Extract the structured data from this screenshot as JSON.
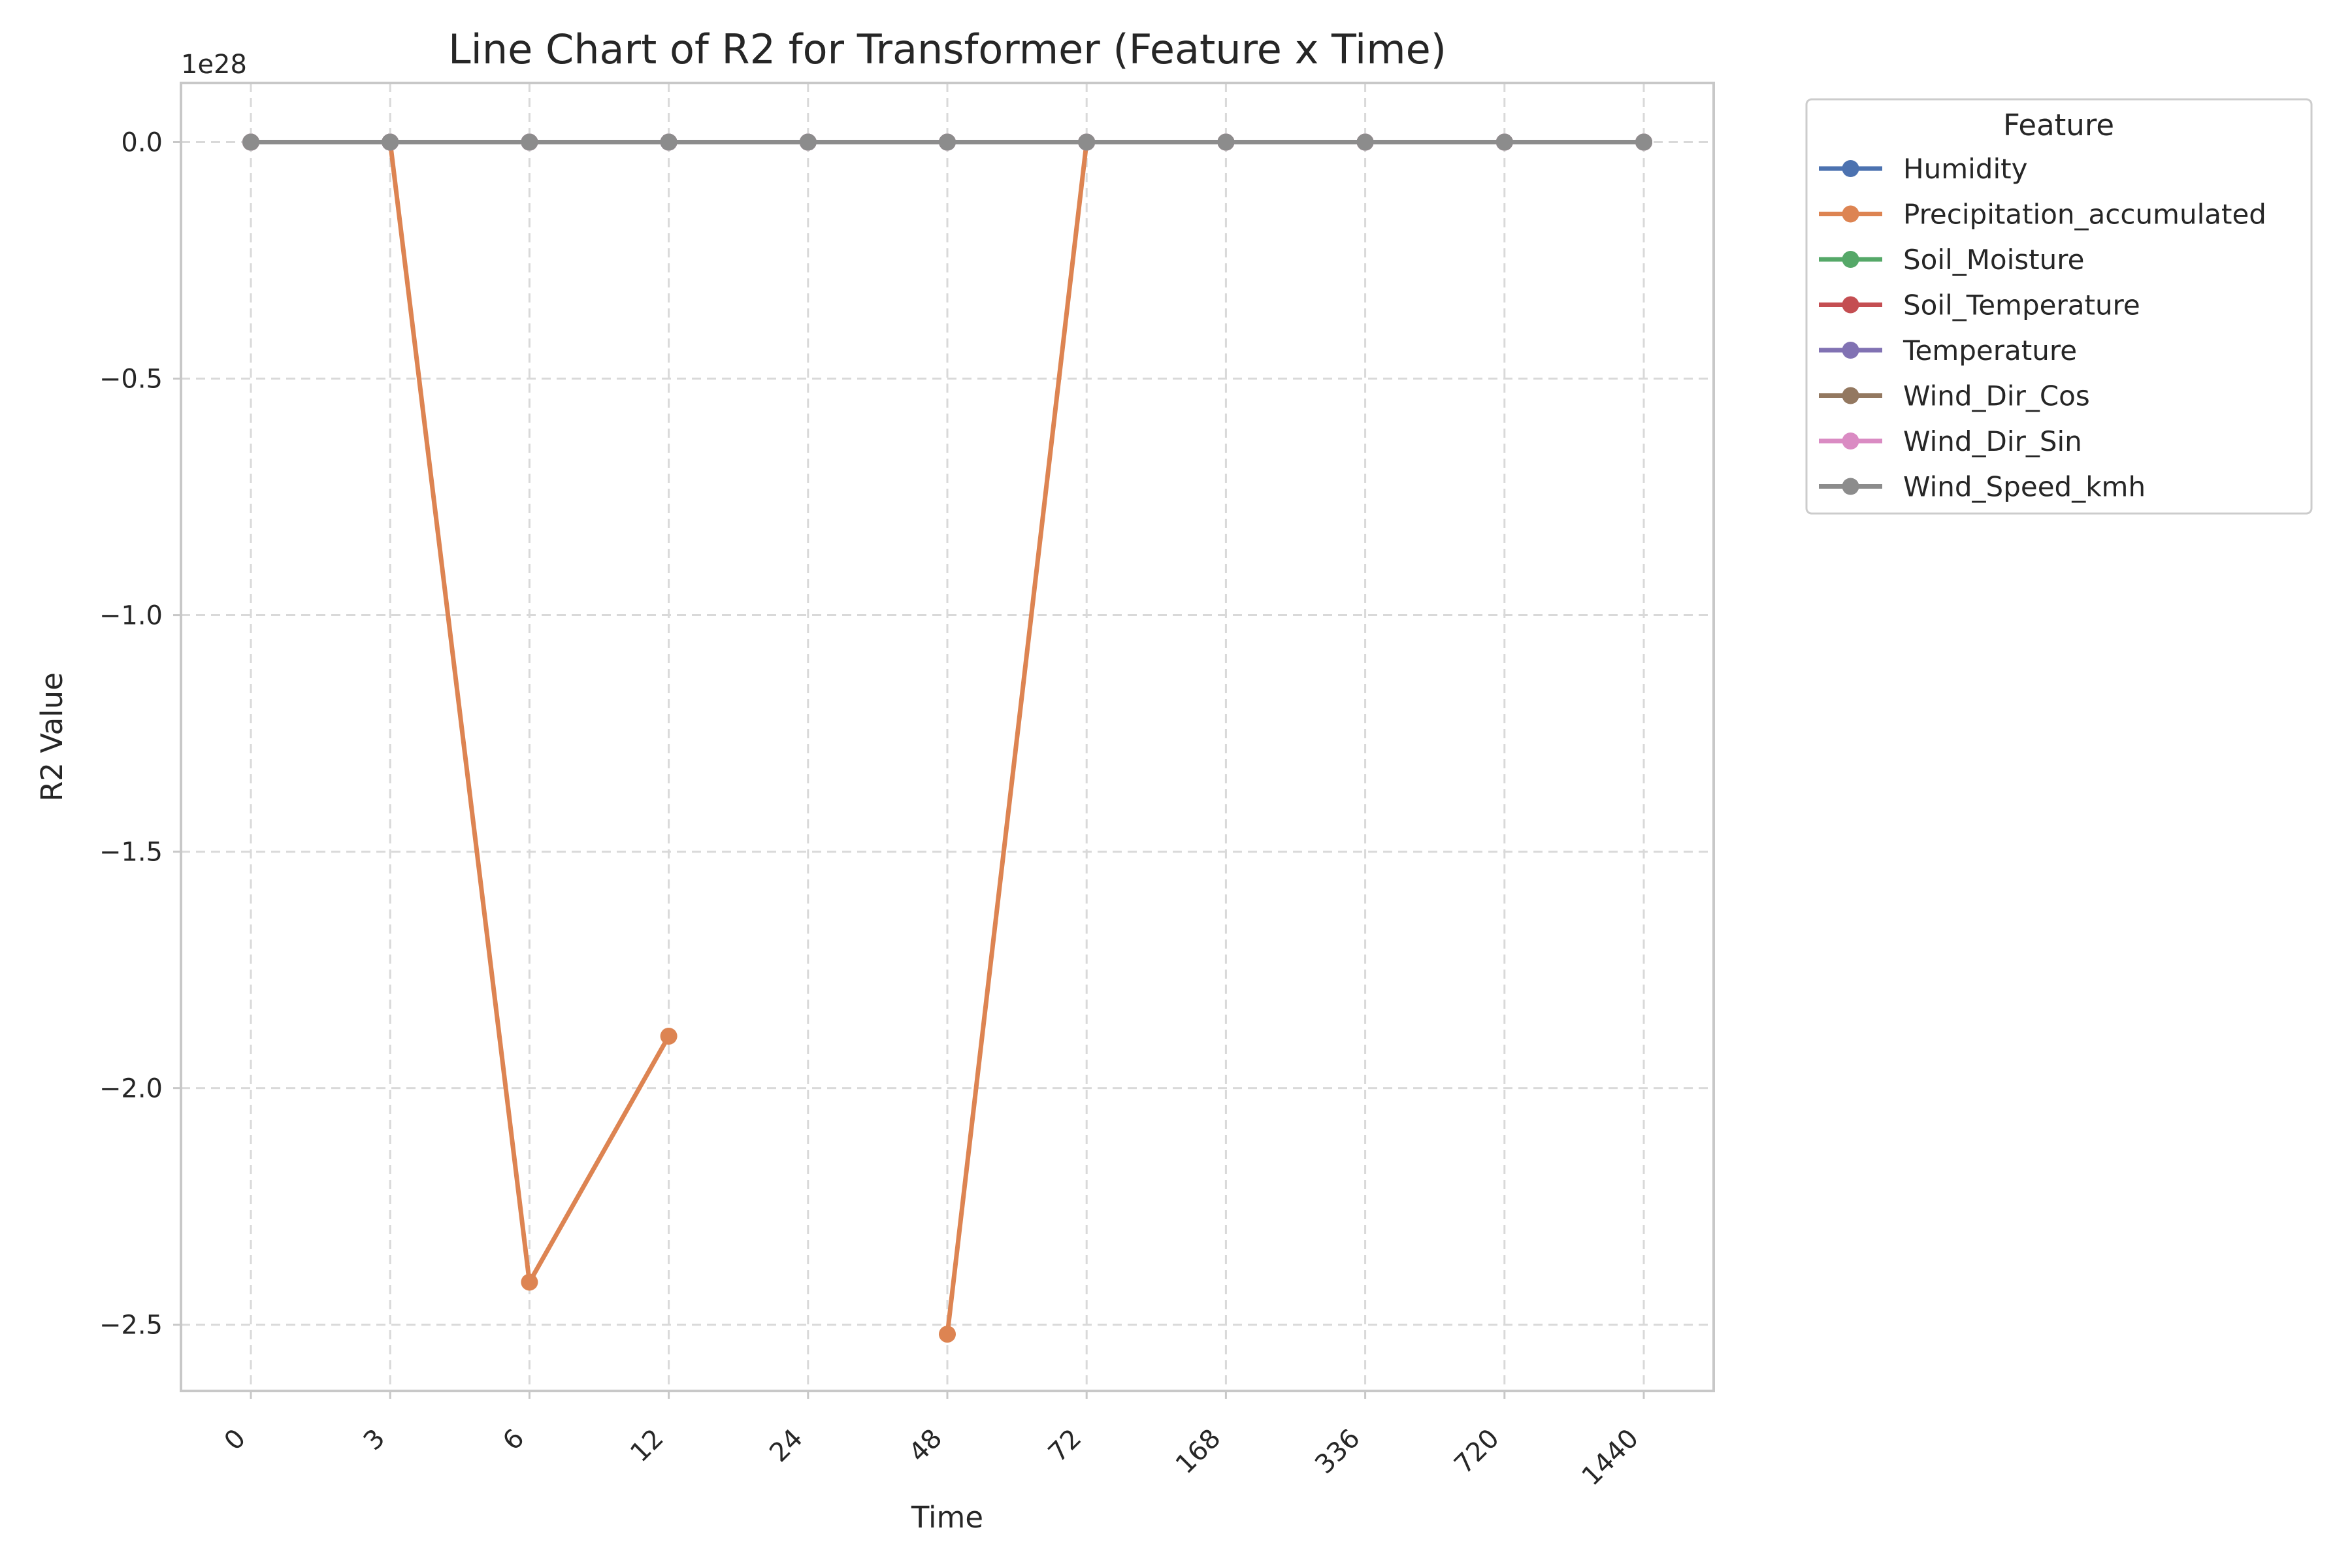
{
  "chart_data": {
    "type": "line",
    "title": "Line Chart of R2 for Transformer (Feature x Time)",
    "xlabel": "Time",
    "ylabel": "R2 Value",
    "y_offset_label": "1e28",
    "y_scale": 1e+28,
    "x_axis": "categorical",
    "categories": [
      "0",
      "3",
      "6",
      "12",
      "24",
      "48",
      "72",
      "168",
      "336",
      "720",
      "1440"
    ],
    "ylim": [
      -2.64e+28,
      1.25e+27
    ],
    "yticks": [
      0,
      -5e+27,
      -1e+28,
      -1.5e+28,
      -2e+28,
      -2.5e+28
    ],
    "ytick_labels": [
      "0.0",
      "−0.5",
      "−1.0",
      "−1.5",
      "−2.0",
      "−2.5"
    ],
    "grid": true,
    "legend": {
      "title": "Feature",
      "placement": "outside-top-right"
    },
    "series": [
      {
        "name": "Humidity",
        "color": "#4c72b0",
        "values": [
          0,
          0,
          0,
          0,
          0,
          0,
          0,
          0,
          0,
          0,
          0
        ]
      },
      {
        "name": "Precipitation_accumulated",
        "color": "#dd8452",
        "values": [
          0,
          0,
          -2.41e+28,
          -1.89e+28,
          null,
          -2.52e+28,
          0,
          0,
          0,
          0,
          0
        ]
      },
      {
        "name": "Soil_Moisture",
        "color": "#55a868",
        "values": [
          0,
          0,
          0,
          0,
          0,
          0,
          0,
          0,
          0,
          0,
          0
        ]
      },
      {
        "name": "Soil_Temperature",
        "color": "#c44e52",
        "values": [
          0,
          0,
          0,
          0,
          0,
          0,
          0,
          0,
          0,
          0,
          0
        ]
      },
      {
        "name": "Temperature",
        "color": "#8172b3",
        "values": [
          0,
          0,
          0,
          0,
          0,
          0,
          0,
          0,
          0,
          0,
          0
        ]
      },
      {
        "name": "Wind_Dir_Cos",
        "color": "#937860",
        "values": [
          0,
          0,
          0,
          0,
          0,
          0,
          0,
          0,
          0,
          0,
          0
        ]
      },
      {
        "name": "Wind_Dir_Sin",
        "color": "#da8bc3",
        "values": [
          0,
          0,
          0,
          0,
          0,
          0,
          0,
          0,
          0,
          0,
          0
        ]
      },
      {
        "name": "Wind_Speed_kmh",
        "color": "#8c8c8c",
        "values": [
          0,
          0,
          0,
          0,
          0,
          0,
          0,
          0,
          0,
          0,
          0
        ]
      }
    ]
  }
}
